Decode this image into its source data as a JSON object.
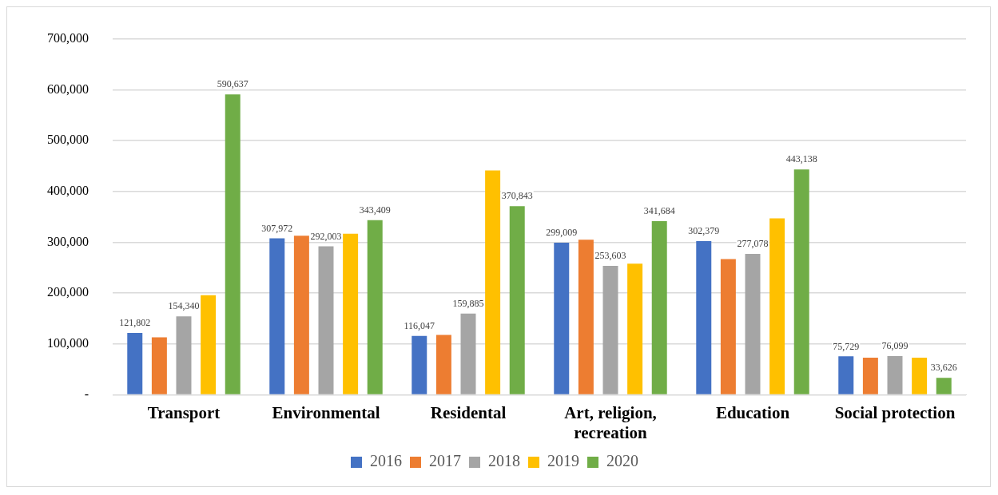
{
  "chart_data": {
    "type": "bar",
    "categories": [
      "Transport",
      "Environmental",
      "Residental",
      "Art, religion, recreation",
      "Education",
      "Social protection"
    ],
    "series": [
      {
        "name": "2016",
        "color": "#4472c4",
        "values": [
          121802,
          307972,
          116047,
          299009,
          302379,
          75729
        ],
        "value_labels": [
          "121,802",
          "307,972",
          "116,047",
          "299,009",
          "302,379",
          "75,729"
        ]
      },
      {
        "name": "2017",
        "color": "#ed7d31",
        "values": [
          113000,
          313000,
          118000,
          305000,
          267000,
          73000
        ]
      },
      {
        "name": "2018",
        "color": "#a5a5a5",
        "values": [
          154340,
          292003,
          159885,
          253603,
          277078,
          76099
        ],
        "value_labels": [
          "154,340",
          "292,003",
          "159,885",
          "253,603",
          "277,078",
          "76,099"
        ]
      },
      {
        "name": "2019",
        "color": "#ffc000",
        "values": [
          196000,
          317000,
          441000,
          258000,
          347000,
          73000
        ]
      },
      {
        "name": "2020",
        "color": "#70ad47",
        "values": [
          590637,
          343409,
          370843,
          341684,
          443138,
          33626
        ],
        "value_labels": [
          "590,637",
          "343,409",
          "370,843",
          "341,684",
          "443,138",
          "33,626"
        ]
      }
    ],
    "ylim": [
      0,
      700000
    ],
    "yticks": [
      {
        "value": 0,
        "label": "-"
      },
      {
        "value": 100000,
        "label": "100,000"
      },
      {
        "value": 200000,
        "label": "200,000"
      },
      {
        "value": 300000,
        "label": "300,000"
      },
      {
        "value": 400000,
        "label": "400,000"
      },
      {
        "value": 500000,
        "label": "500,000"
      },
      {
        "value": 600000,
        "label": "600,000"
      },
      {
        "value": 700000,
        "label": "700,000"
      }
    ],
    "grid": "y",
    "legend": "bottom"
  }
}
